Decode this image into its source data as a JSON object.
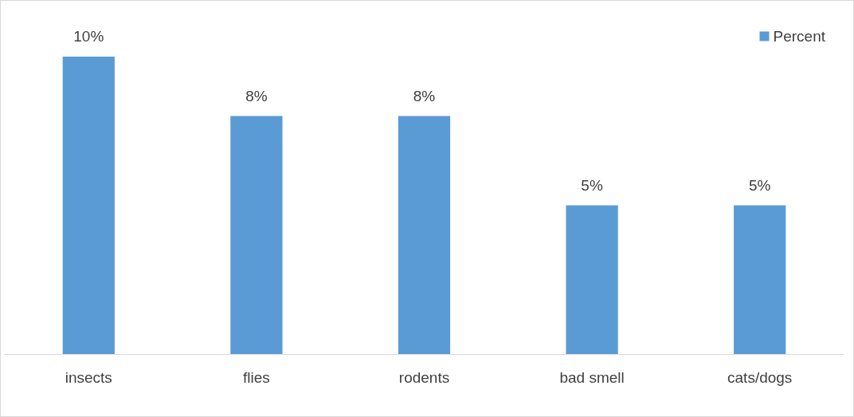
{
  "chart_data": {
    "type": "bar",
    "categories": [
      "insects",
      "flies",
      "rodents",
      "bad smell",
      "cats/dogs"
    ],
    "series": [
      {
        "name": "Percent",
        "color": "#5b9bd5",
        "values": [
          10,
          8,
          8,
          5,
          5
        ],
        "value_labels": [
          "10%",
          "8%",
          "8%",
          "5%",
          "5%"
        ]
      }
    ],
    "legend": "top right",
    "grid": false
  }
}
